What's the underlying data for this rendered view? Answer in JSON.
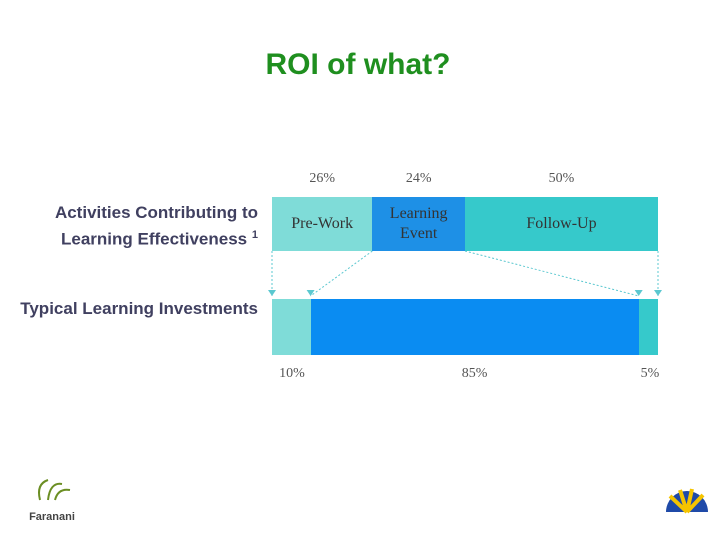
{
  "chart_data": {
    "type": "stacked_bar",
    "title": "ROI of what?",
    "categories": [
      "Activities Contributing to Learning Effectiveness",
      "Typical Learning Investments"
    ],
    "footnote_marker": "1",
    "series": [
      {
        "name": "Pre-Work",
        "colors": [
          "#7fdcd8",
          "#7fdcd8"
        ],
        "values": [
          26,
          10
        ],
        "value_labels": [
          "26%",
          "10%"
        ]
      },
      {
        "name": "Learning Event",
        "colors": [
          "#1e90e6",
          "#0a8cf2"
        ],
        "values": [
          24,
          85
        ],
        "value_labels": [
          "24%",
          "85%"
        ]
      },
      {
        "name": "Follow-Up",
        "colors": [
          "#36c9cb",
          "#36c9cb"
        ],
        "values": [
          50,
          5
        ],
        "value_labels": [
          "50%",
          "5%"
        ]
      }
    ]
  },
  "logos": {
    "left": "Faranani"
  }
}
